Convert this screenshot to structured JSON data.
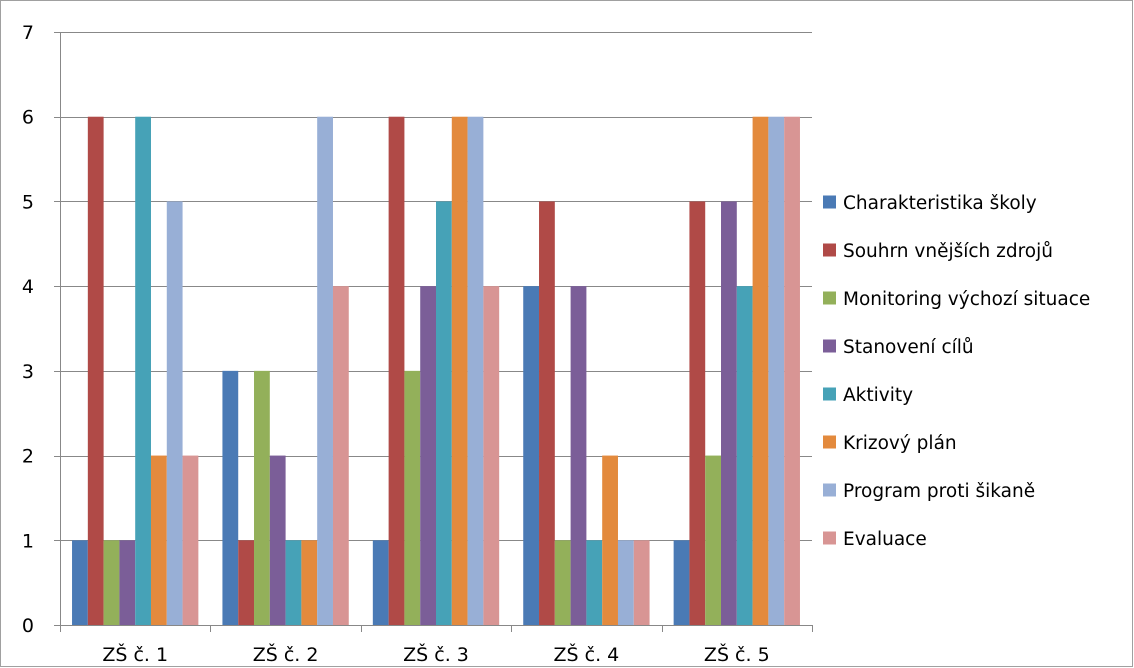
{
  "chart_data": {
    "type": "bar",
    "categories": [
      "ZŠ č. 1",
      "ZŠ č. 2",
      "ZŠ č. 3",
      "ZŠ č. 4",
      "ZŠ č. 5"
    ],
    "series": [
      {
        "name": "Charakteristika školy",
        "color": "#4a7ab5",
        "values": [
          1,
          3,
          1,
          4,
          1
        ]
      },
      {
        "name": "Souhrn vnějších zdrojů",
        "color": "#b04a47",
        "values": [
          6,
          1,
          6,
          5,
          5
        ]
      },
      {
        "name": "Monitoring výchozí situace",
        "color": "#93b05a",
        "values": [
          1,
          3,
          3,
          1,
          2
        ]
      },
      {
        "name": "Stanovení cílů",
        "color": "#7b5e98",
        "values": [
          1,
          2,
          4,
          4,
          5
        ]
      },
      {
        "name": "Aktivity",
        "color": "#46a2b7",
        "values": [
          6,
          1,
          5,
          1,
          4
        ]
      },
      {
        "name": "Krizový plán",
        "color": "#e38a3d",
        "values": [
          2,
          1,
          6,
          2,
          6
        ]
      },
      {
        "name": "Program proti šikaně",
        "color": "#98afd6",
        "values": [
          5,
          6,
          6,
          1,
          6
        ]
      },
      {
        "name": "Evaluace",
        "color": "#d89594",
        "values": [
          2,
          4,
          4,
          1,
          6
        ]
      }
    ],
    "ylim": [
      0,
      7
    ],
    "yticks": [
      "0",
      "1",
      "2",
      "3",
      "4",
      "5",
      "6",
      "7"
    ],
    "grid": true,
    "legend": "right",
    "title": "",
    "xlabel": "",
    "ylabel": ""
  }
}
